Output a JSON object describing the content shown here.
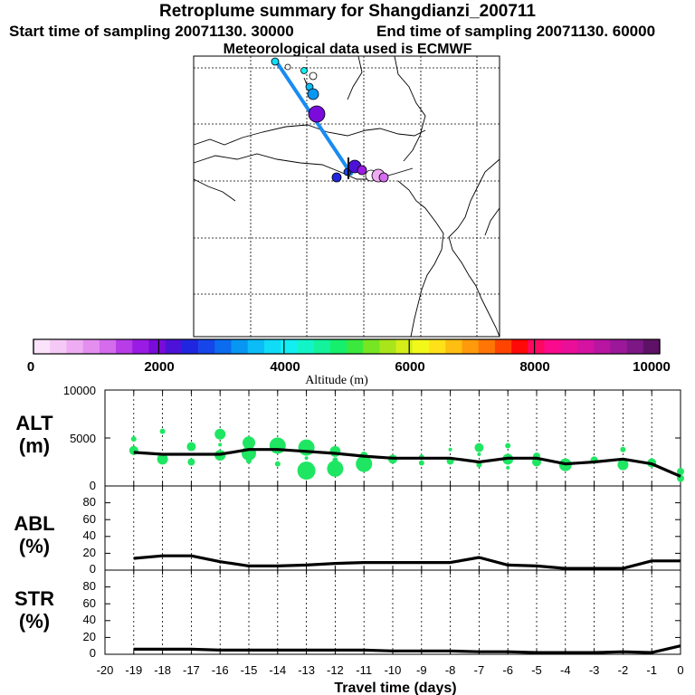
{
  "title": "Retroplume summary for Shangdianzi_200711",
  "start_label": "Start time of sampling 20071130. 30000",
  "end_label": "End time of sampling 20071130. 60000",
  "met_label": "Meteorological data used is ECMWF",
  "colorbar": {
    "ticks": [
      "0",
      "2000",
      "4000",
      "6000",
      "8000",
      "10000"
    ],
    "label": "Altitude (m)",
    "colors": [
      "#fbe3fb",
      "#f5c9f6",
      "#eeadf2",
      "#e48ff0",
      "#d46cec",
      "#b83de8",
      "#9a1be3",
      "#7a0bdb",
      "#4d12d8",
      "#2026e0",
      "#1646ea",
      "#0b6cf0",
      "#0896f3",
      "#0bbcf6",
      "#10dcf7",
      "#12eef2",
      "#12f4c8",
      "#14f29b",
      "#16ef6d",
      "#3ae83e",
      "#76e522",
      "#a9e51a",
      "#d4ee1a",
      "#f3f81b",
      "#ffe11a",
      "#ffbf12",
      "#ff9a0c",
      "#ff7506",
      "#ff4402",
      "#ff0808",
      "#ff0862",
      "#fa0a8c",
      "#ea0f98",
      "#d413a0",
      "#b815a2",
      "#9a1899",
      "#7c1785",
      "#5d1265"
    ]
  },
  "map": {
    "trajectory_color": "#1a8cf0"
  },
  "panels": {
    "alt": {
      "label_line1": "ALT",
      "label_line2": "(m)",
      "yticks": [
        "10000",
        "5000",
        "0"
      ]
    },
    "abl": {
      "label_line1": "ABL",
      "label_line2": "(%)",
      "yticks": [
        "80",
        "60",
        "40",
        "20",
        "0"
      ]
    },
    "str": {
      "label_line1": "STR",
      "label_line2": "(%)",
      "yticks": [
        "80",
        "60",
        "40",
        "20",
        "0"
      ]
    }
  },
  "x_axis": {
    "label": "Travel time (days)",
    "ticks": [
      "-20",
      "-19",
      "-18",
      "-17",
      "-16",
      "-15",
      "-14",
      "-13",
      "-12",
      "-11",
      "-10",
      "-9",
      "-8",
      "-7",
      "-6",
      "-5",
      "-4",
      "-3",
      "-2",
      "-1",
      "0"
    ]
  },
  "chart_data": [
    {
      "type": "line",
      "name": "ALT",
      "title": "",
      "xlabel": "Travel time (days)",
      "ylabel": "ALT (m)",
      "xlim": [
        -20,
        0
      ],
      "ylim": [
        0,
        10000
      ],
      "x": [
        -19,
        -18,
        -17,
        -16,
        -15,
        -14,
        -13,
        -12,
        -11,
        -10,
        -9,
        -8,
        -7,
        -6,
        -5,
        -4,
        -3,
        -2,
        -1,
        0
      ],
      "series": [
        {
          "name": "mean altitude",
          "color": "#000000",
          "values": [
            3500,
            3300,
            3300,
            3300,
            3800,
            3800,
            3600,
            3400,
            3100,
            2900,
            2900,
            2900,
            2500,
            2900,
            2900,
            2300,
            2500,
            2800,
            2300,
            1000
          ]
        }
      ],
      "scatter_color": "#1fe662",
      "scatter": [
        {
          "x": -19,
          "y": 3700
        },
        {
          "x": -19,
          "y": 4900
        },
        {
          "x": -18,
          "y": 2800
        },
        {
          "x": -18,
          "y": 5700
        },
        {
          "x": -17,
          "y": 4100
        },
        {
          "x": -17,
          "y": 2500
        },
        {
          "x": -16,
          "y": 3200
        },
        {
          "x": -16,
          "y": 4300
        },
        {
          "x": -16,
          "y": 5400
        },
        {
          "x": -15,
          "y": 4500
        },
        {
          "x": -15,
          "y": 3400
        },
        {
          "x": -15,
          "y": 2600
        },
        {
          "x": -14,
          "y": 4200
        },
        {
          "x": -14,
          "y": 2300
        },
        {
          "x": -13,
          "y": 4000
        },
        {
          "x": -13,
          "y": 2900
        },
        {
          "x": -13,
          "y": 2200
        },
        {
          "x": -13,
          "y": 1600
        },
        {
          "x": -12,
          "y": 3600
        },
        {
          "x": -12,
          "y": 2700
        },
        {
          "x": -12,
          "y": 1800
        },
        {
          "x": -11,
          "y": 3200
        },
        {
          "x": -11,
          "y": 2300
        },
        {
          "x": -10,
          "y": 2800
        },
        {
          "x": -9,
          "y": 3000
        },
        {
          "x": -9,
          "y": 2400
        },
        {
          "x": -8,
          "y": 3800
        },
        {
          "x": -8,
          "y": 2600
        },
        {
          "x": -7,
          "y": 4000
        },
        {
          "x": -7,
          "y": 2200
        },
        {
          "x": -7,
          "y": 3300
        },
        {
          "x": -6,
          "y": 4200
        },
        {
          "x": -6,
          "y": 2800
        },
        {
          "x": -6,
          "y": 1900
        },
        {
          "x": -5,
          "y": 3100
        },
        {
          "x": -5,
          "y": 2500
        },
        {
          "x": -4,
          "y": 2200
        },
        {
          "x": -3,
          "y": 2700
        },
        {
          "x": -2,
          "y": 3800
        },
        {
          "x": -2,
          "y": 2200
        },
        {
          "x": -1,
          "y": 2400
        },
        {
          "x": 0,
          "y": 1500
        },
        {
          "x": 0,
          "y": 800
        }
      ]
    },
    {
      "type": "line",
      "name": "ABL",
      "xlabel": "Travel time (days)",
      "ylabel": "ABL (%)",
      "xlim": [
        -20,
        0
      ],
      "ylim": [
        0,
        100
      ],
      "x": [
        -19,
        -18,
        -17,
        -16,
        -15,
        -14,
        -13,
        -12,
        -11,
        -10,
        -9,
        -8,
        -7,
        -6,
        -5,
        -4,
        -3,
        -2,
        -1,
        0
      ],
      "series": [
        {
          "name": "ABL fraction",
          "color": "#000000",
          "values": [
            14,
            17,
            17,
            10,
            5,
            5,
            6,
            8,
            9,
            9,
            9,
            9,
            15,
            6,
            5,
            2,
            2,
            2,
            11,
            11
          ]
        }
      ]
    },
    {
      "type": "line",
      "name": "STR",
      "xlabel": "Travel time (days)",
      "ylabel": "STR (%)",
      "xlim": [
        -20,
        0
      ],
      "ylim": [
        0,
        100
      ],
      "x": [
        -19,
        -18,
        -17,
        -16,
        -15,
        -14,
        -13,
        -12,
        -11,
        -10,
        -9,
        -8,
        -7,
        -6,
        -5,
        -4,
        -3,
        -2,
        -1,
        0
      ],
      "series": [
        {
          "name": "STR fraction",
          "color": "#000000",
          "values": [
            6,
            6,
            6,
            5,
            5,
            5,
            5,
            5,
            5,
            4,
            4,
            4,
            3,
            3,
            2,
            2,
            2,
            3,
            2,
            10
          ]
        }
      ]
    }
  ]
}
